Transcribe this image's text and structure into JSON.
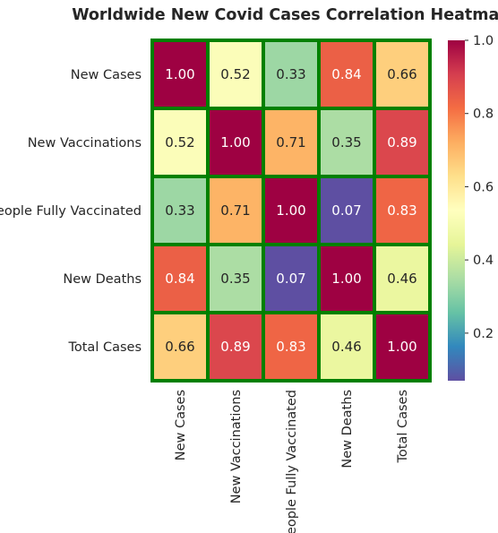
{
  "chart_data": {
    "type": "heatmap",
    "title": "Worldwide New Covid Cases Correlation Heatmap",
    "xlabel": "",
    "ylabel": "",
    "row_labels": [
      "New Cases",
      "New Vaccinations",
      "People Fully Vaccinated",
      "New Deaths",
      "Total Cases"
    ],
    "col_labels": [
      "New Cases",
      "New Vaccinations",
      "People Fully Vaccinated",
      "New Deaths",
      "Total Cases"
    ],
    "values": [
      [
        1.0,
        0.52,
        0.33,
        0.84,
        0.66
      ],
      [
        0.52,
        1.0,
        0.71,
        0.35,
        0.89
      ],
      [
        0.33,
        0.71,
        1.0,
        0.07,
        0.83
      ],
      [
        0.84,
        0.35,
        0.07,
        1.0,
        0.46
      ],
      [
        0.66,
        0.89,
        0.83,
        0.46,
        1.0
      ]
    ],
    "value_labels": [
      [
        "1.00",
        "0.52",
        "0.33",
        "0.84",
        "0.66"
      ],
      [
        "0.52",
        "1.00",
        "0.71",
        "0.35",
        "0.89"
      ],
      [
        "0.33",
        "0.71",
        "1.00",
        "0.07",
        "0.83"
      ],
      [
        "0.84",
        "0.35",
        "0.07",
        "1.00",
        "0.46"
      ],
      [
        "0.66",
        "0.89",
        "0.83",
        "0.46",
        "1.00"
      ]
    ],
    "colormap": "Spectral_r",
    "vmin": 0.07,
    "vmax": 1.0,
    "cell_border_color": "#008000",
    "colorbar": {
      "ticks": [
        0.2,
        0.4,
        0.6,
        0.8,
        1.0
      ],
      "tick_labels": [
        "0.2",
        "0.4",
        "0.6",
        "0.8",
        "1.0"
      ],
      "placement": "right"
    }
  }
}
